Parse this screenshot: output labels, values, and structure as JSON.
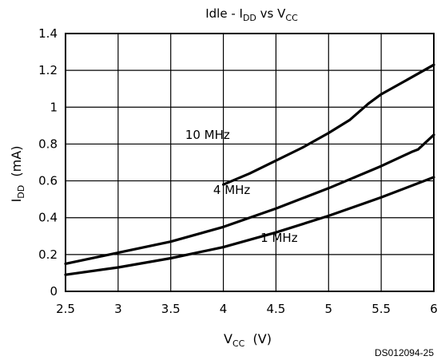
{
  "chart_data": {
    "type": "line",
    "title": {
      "main": "Idle - I",
      "sub1": "DD",
      "mid": " vs V",
      "sub2": "CC"
    },
    "xlabel": {
      "main": "V",
      "sub": "CC",
      "unit": "  (V)"
    },
    "ylabel": {
      "main": "I",
      "sub": "DD",
      "unit": "  (mA)"
    },
    "xlim": [
      2.5,
      6
    ],
    "ylim": [
      0,
      1.4
    ],
    "xticks": [
      2.5,
      3,
      3.5,
      4,
      4.5,
      5,
      5.5,
      6
    ],
    "xtick_labels": [
      "2.5",
      "3",
      "3.5",
      "4",
      "4.5",
      "5",
      "5.5",
      "6"
    ],
    "yticks": [
      0,
      0.2,
      0.4,
      0.6,
      0.8,
      1,
      1.2,
      1.4
    ],
    "ytick_labels": [
      "0",
      "0.2",
      "0.4",
      "0.6",
      "0.8",
      "1",
      "1.2",
      "1.4"
    ],
    "grid": true,
    "series": [
      {
        "name": "10 MHz",
        "points": [
          [
            4,
            0.58
          ],
          [
            4.25,
            0.64
          ],
          [
            4.5,
            0.71
          ],
          [
            4.75,
            0.78
          ],
          [
            5,
            0.86
          ],
          [
            5.2,
            0.93
          ],
          [
            5.38,
            1.02
          ],
          [
            5.5,
            1.07
          ],
          [
            5.75,
            1.15
          ],
          [
            6,
            1.23
          ]
        ]
      },
      {
        "name": "4 MHz",
        "points": [
          [
            2.5,
            0.15
          ],
          [
            3,
            0.21
          ],
          [
            3.5,
            0.27
          ],
          [
            4,
            0.35
          ],
          [
            4.5,
            0.45
          ],
          [
            5,
            0.56
          ],
          [
            5.5,
            0.68
          ],
          [
            5.8,
            0.76
          ],
          [
            5.85,
            0.77
          ],
          [
            6,
            0.85
          ]
        ]
      },
      {
        "name": "1 MHz",
        "points": [
          [
            2.5,
            0.09
          ],
          [
            3,
            0.13
          ],
          [
            3.5,
            0.18
          ],
          [
            4,
            0.24
          ],
          [
            4.5,
            0.32
          ],
          [
            5,
            0.41
          ],
          [
            5.5,
            0.51
          ],
          [
            6,
            0.62
          ]
        ]
      }
    ],
    "series_label_anchor": [
      {
        "x": 3.85,
        "y": 0.85
      },
      {
        "x": 4.08,
        "y": 0.55
      },
      {
        "x": 4.53,
        "y": 0.29
      }
    ]
  },
  "footer": "DS012094-25"
}
